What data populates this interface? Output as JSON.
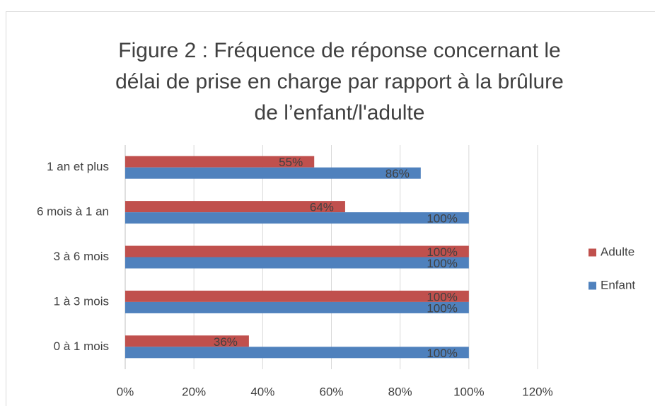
{
  "chart_data": {
    "type": "barh",
    "title": [
      "Figure 2 : Fréquence de réponse concernant le",
      "délai de prise en charge par rapport à la brûlure",
      "de l’enfant/l'adulte"
    ],
    "categories": [
      "1 an et plus",
      "6 mois à 1 an",
      "3 à 6 mois",
      "1 à 3 mois",
      "0 à 1 mois"
    ],
    "series": [
      {
        "name": "Adulte",
        "color": "#c0504d",
        "values": [
          55,
          64,
          100,
          100,
          36
        ],
        "value_labels": [
          "55%",
          "64%",
          "100%",
          "100%",
          "36%"
        ]
      },
      {
        "name": "Enfant",
        "color": "#4f81bd",
        "values": [
          86,
          100,
          100,
          100,
          100
        ],
        "value_labels": [
          "86%",
          "100%",
          "100%",
          "100%",
          "100%"
        ]
      }
    ],
    "xlim": [
      0,
      120
    ],
    "xticks": [
      {
        "value": 0,
        "label": "0%"
      },
      {
        "value": 20,
        "label": "20%"
      },
      {
        "value": 40,
        "label": "40%"
      },
      {
        "value": 60,
        "label": "60%"
      },
      {
        "value": 80,
        "label": "80%"
      },
      {
        "value": 100,
        "label": "100%"
      },
      {
        "value": 120,
        "label": "120%"
      }
    ],
    "grid": true,
    "legend": "right"
  }
}
